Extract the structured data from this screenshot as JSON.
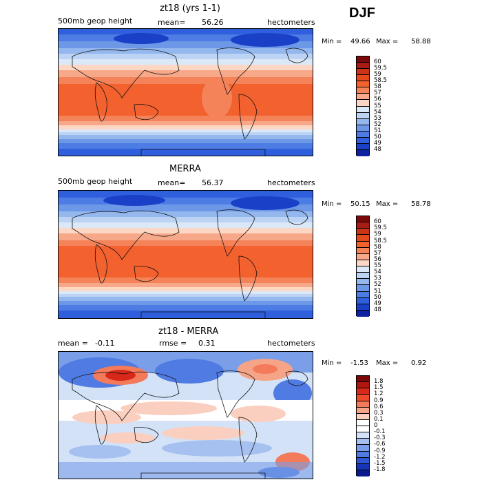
{
  "season": "DJF",
  "units_label": "hectometers",
  "panels": [
    {
      "title": "zt18 (yrs 1-1)",
      "left_label": "500mb geop height",
      "stat_label": "mean=",
      "stat_value": "56.26",
      "units": "hectometers",
      "min_label": "Min =",
      "min_value": "49.66",
      "max_label": "Max =",
      "max_value": "58.88",
      "colorbar_levels": [
        "60",
        "59.5",
        "59",
        "58.5",
        "58",
        "57",
        "56",
        "55",
        "54",
        "53",
        "52",
        "51",
        "50",
        "49",
        "48"
      ],
      "colorbar_colors": [
        "#7a0a0a",
        "#a71c14",
        "#cc3418",
        "#e54a1f",
        "#f2612e",
        "#f5835a",
        "#f7a889",
        "#fbd7c4",
        "#dbe8f8",
        "#bcd3f3",
        "#94b7ee",
        "#6d98e7",
        "#4d7ce4",
        "#2f5fdc",
        "#1a40c8",
        "#0c22a0"
      ]
    },
    {
      "title": "MERRA",
      "left_label": "500mb geop height",
      "stat_label": "mean=",
      "stat_value": "56.37",
      "units": "hectometers",
      "min_label": "Min =",
      "min_value": "50.15",
      "max_label": "Max =",
      "max_value": "58.78",
      "colorbar_levels": [
        "60",
        "59.5",
        "59",
        "58.5",
        "58",
        "57",
        "56",
        "55",
        "54",
        "53",
        "52",
        "51",
        "50",
        "49",
        "48"
      ],
      "colorbar_colors": [
        "#7a0a0a",
        "#a71c14",
        "#cc3418",
        "#e54a1f",
        "#f2612e",
        "#f5835a",
        "#f7a889",
        "#fbd7c4",
        "#dbe8f8",
        "#bcd3f3",
        "#94b7ee",
        "#6d98e7",
        "#4d7ce4",
        "#2f5fdc",
        "#1a40c8",
        "#0c22a0"
      ]
    },
    {
      "title": "zt18 - MERRA",
      "left_label": "mean =",
      "left_value": "-0.11",
      "stat_label": "rmse =",
      "stat_value": "0.31",
      "units": "hectometers",
      "min_label": "Min =",
      "min_value": "-1.53",
      "max_label": "Max =",
      "max_value": "0.92",
      "colorbar_levels": [
        "1.8",
        "1.5",
        "1.2",
        "0.9",
        "0.6",
        "0.3",
        "0.1",
        "0",
        "-0.1",
        "-0.3",
        "-0.6",
        "-0.9",
        "-1.2",
        "-1.5",
        "-1.8"
      ],
      "colorbar_colors": [
        "#7a0a0a",
        "#b0160f",
        "#d8281a",
        "#ee4a2c",
        "#f37a5a",
        "#f6a487",
        "#fbcfbf",
        "#ffffff",
        "#ffffff",
        "#d3e2f7",
        "#a6c1f0",
        "#7a9fe8",
        "#4f7be2",
        "#2d57d4",
        "#1534b8",
        "#0a1a8c"
      ]
    }
  ]
}
